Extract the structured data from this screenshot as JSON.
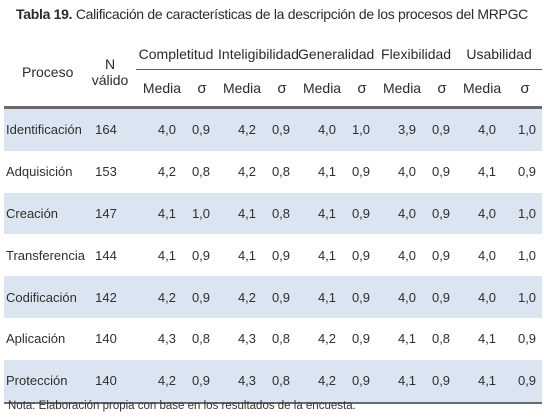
{
  "caption": {
    "label": "Tabla 19.",
    "text": "Calificación de características de la descripción de los procesos del MRPGC"
  },
  "table": {
    "col_proceso": "Proceso",
    "col_nvalido": "N válido",
    "groups": [
      "Completitud",
      "Inteligibilidad",
      "Generalidad",
      "Flexibilidad",
      "Usabilidad"
    ],
    "sub_media": "Media",
    "sub_sigma": "σ",
    "rows": [
      {
        "name": "Identificación",
        "n": "164",
        "vals": [
          "4,0",
          "0,9",
          "4,2",
          "0,9",
          "4,0",
          "1,0",
          "3,9",
          "0,9",
          "4,0",
          "1,0"
        ]
      },
      {
        "name": "Adquisición",
        "n": "153",
        "vals": [
          "4,2",
          "0,8",
          "4,2",
          "0,8",
          "4,1",
          "0,9",
          "4,0",
          "0,9",
          "4,1",
          "0,9"
        ]
      },
      {
        "name": "Creación",
        "n": "147",
        "vals": [
          "4,1",
          "1,0",
          "4,1",
          "0,8",
          "4,1",
          "0,9",
          "4,0",
          "0,9",
          "4,0",
          "1,0"
        ]
      },
      {
        "name": "Transferencia",
        "n": "144",
        "vals": [
          "4,1",
          "0,9",
          "4,1",
          "0,9",
          "4,1",
          "0,9",
          "4,0",
          "0,9",
          "4,0",
          "1,0"
        ]
      },
      {
        "name": "Codificación",
        "n": "142",
        "vals": [
          "4,2",
          "0,9",
          "4,2",
          "0,9",
          "4,1",
          "0,9",
          "4,0",
          "0,9",
          "4,0",
          "1,0"
        ]
      },
      {
        "name": "Aplicación",
        "n": "140",
        "vals": [
          "4,3",
          "0,8",
          "4,3",
          "0,8",
          "4,2",
          "0,9",
          "4,1",
          "0,8",
          "4,1",
          "0,9"
        ]
      },
      {
        "name": "Protección",
        "n": "140",
        "vals": [
          "4,2",
          "0,9",
          "4,3",
          "0,8",
          "4,2",
          "0,9",
          "4,1",
          "0,9",
          "4,1",
          "0,9"
        ]
      }
    ]
  },
  "note": "Nota: Elaboración propia con base en los resultados de la encuesta.",
  "colors": {
    "row_shade": "#dbe5f1",
    "rule": "#6b6b6b"
  }
}
